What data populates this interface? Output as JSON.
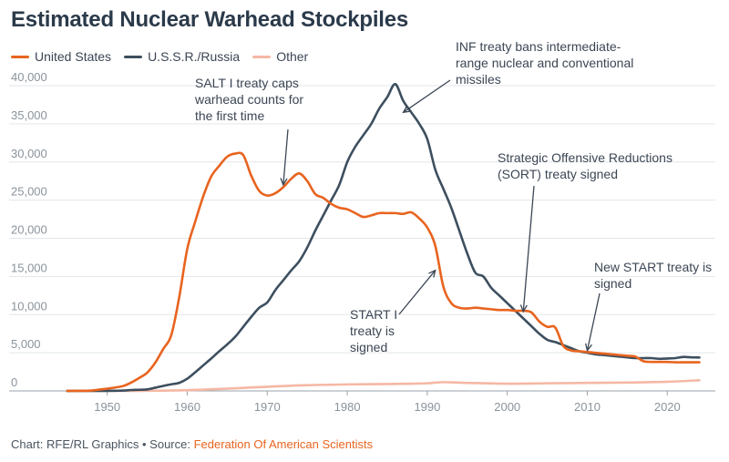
{
  "chart_data": {
    "type": "line",
    "title": "Estimated Nuclear Warhead Stockpiles",
    "xlabel": "",
    "ylabel": "",
    "xlim": [
      1944,
      2026
    ],
    "ylim": [
      0,
      40000
    ],
    "xticks": [
      "1950",
      "1960",
      "1970",
      "1980",
      "1990",
      "2000",
      "2010",
      "2020"
    ],
    "xtick_values": [
      1950,
      1960,
      1970,
      1980,
      1990,
      2000,
      2010,
      2020
    ],
    "yticks": [
      "0",
      "5,000",
      "10,000",
      "15,000",
      "20,000",
      "25,000",
      "30,000",
      "35,000",
      "40,000"
    ],
    "ytick_values": [
      0,
      5000,
      10000,
      15000,
      20000,
      25000,
      30000,
      35000,
      40000
    ],
    "grid": true,
    "legend_position": "top-left",
    "series": [
      {
        "name": "United States",
        "color": "#e8641f",
        "x": [
          1945,
          1946,
          1947,
          1948,
          1949,
          1950,
          1951,
          1952,
          1953,
          1954,
          1955,
          1956,
          1957,
          1958,
          1959,
          1960,
          1961,
          1962,
          1963,
          1964,
          1965,
          1966,
          1967,
          1968,
          1969,
          1970,
          1971,
          1972,
          1973,
          1974,
          1975,
          1976,
          1977,
          1978,
          1979,
          1980,
          1981,
          1982,
          1983,
          1984,
          1985,
          1986,
          1987,
          1988,
          1989,
          1990,
          1991,
          1992,
          1993,
          1994,
          1995,
          1996,
          1997,
          1998,
          1999,
          2000,
          2001,
          2002,
          2003,
          2004,
          2005,
          2006,
          2007,
          2008,
          2009,
          2010,
          2011,
          2012,
          2013,
          2014,
          2015,
          2016,
          2017,
          2018,
          2019,
          2020,
          2021,
          2022,
          2023,
          2024
        ],
        "y": [
          2,
          9,
          13,
          50,
          170,
          300,
          450,
          650,
          1100,
          1700,
          2400,
          3700,
          5500,
          7300,
          12300,
          18600,
          22200,
          25500,
          28100,
          29500,
          30700,
          31100,
          30900,
          28200,
          26200,
          25600,
          25900,
          26700,
          27800,
          28500,
          27500,
          25800,
          25300,
          24500,
          24000,
          23800,
          23300,
          22800,
          23000,
          23300,
          23300,
          23300,
          23200,
          23400,
          22600,
          21400,
          19000,
          13700,
          11500,
          10900,
          10800,
          10900,
          10800,
          10700,
          10600,
          10600,
          10500,
          10500,
          10300,
          9100,
          8400,
          8300,
          5900,
          5300,
          5200,
          5100,
          5000,
          4900,
          4800,
          4700,
          4600,
          4500,
          3900,
          3800,
          3800,
          3800,
          3750,
          3750,
          3750,
          3750
        ]
      },
      {
        "name": "U.S.S.R./Russia",
        "color": "#3d4f5f",
        "x": [
          1945,
          1946,
          1947,
          1948,
          1949,
          1950,
          1951,
          1952,
          1953,
          1954,
          1955,
          1956,
          1957,
          1958,
          1959,
          1960,
          1961,
          1962,
          1963,
          1964,
          1965,
          1966,
          1967,
          1968,
          1969,
          1970,
          1971,
          1972,
          1973,
          1974,
          1975,
          1976,
          1977,
          1978,
          1979,
          1980,
          1981,
          1982,
          1983,
          1984,
          1985,
          1986,
          1987,
          1988,
          1989,
          1990,
          1991,
          1992,
          1993,
          1994,
          1995,
          1996,
          1997,
          1998,
          1999,
          2000,
          2001,
          2002,
          2003,
          2004,
          2005,
          2006,
          2007,
          2008,
          2009,
          2010,
          2011,
          2012,
          2013,
          2014,
          2015,
          2016,
          2017,
          2018,
          2019,
          2020,
          2021,
          2022,
          2023,
          2024
        ],
        "y": [
          0,
          0,
          0,
          0,
          1,
          5,
          25,
          50,
          120,
          150,
          200,
          426,
          660,
          869,
          1060,
          1600,
          2450,
          3350,
          4250,
          5200,
          6100,
          7100,
          8400,
          9700,
          10900,
          11600,
          13200,
          14500,
          15800,
          17000,
          18800,
          21000,
          23000,
          25000,
          27000,
          30000,
          32000,
          33500,
          35000,
          37000,
          38500,
          40200,
          38000,
          36500,
          35000,
          33000,
          29000,
          26500,
          24000,
          21000,
          18000,
          15500,
          15000,
          13500,
          12500,
          11500,
          10500,
          9500,
          8500,
          7500,
          6700,
          6400,
          6000,
          5600,
          5200,
          5000,
          4800,
          4700,
          4600,
          4500,
          4400,
          4300,
          4300,
          4300,
          4200,
          4250,
          4300,
          4450,
          4400,
          4380
        ]
      },
      {
        "name": "Other",
        "color": "#f5b8a4",
        "x": [
          1945,
          1950,
          1953,
          1955,
          1960,
          1965,
          1970,
          1975,
          1980,
          1985,
          1988,
          1990,
          1992,
          1995,
          2000,
          2005,
          2010,
          2015,
          2020,
          2024
        ],
        "y": [
          0,
          0,
          5,
          20,
          100,
          300,
          550,
          750,
          850,
          900,
          950,
          1000,
          1150,
          1050,
          950,
          1000,
          1050,
          1100,
          1200,
          1400
        ]
      }
    ],
    "annotations": [
      {
        "id": "salt",
        "lines": [
          "SALT I treaty caps",
          "warhead counts for",
          "the first time"
        ],
        "arrow_to": [
          1972,
          27000
        ]
      },
      {
        "id": "inf",
        "lines": [
          "INF treaty bans intermediate-",
          "range nuclear and conventional",
          "missiles"
        ],
        "arrow_to": [
          1987,
          36500
        ]
      },
      {
        "id": "sort",
        "lines": [
          "Strategic Offensive Reductions",
          "(SORT) treaty signed"
        ],
        "arrow_to": [
          2002,
          10400
        ]
      },
      {
        "id": "start1",
        "lines": [
          "START I",
          "treaty is",
          "signed"
        ],
        "arrow_to": [
          1991,
          15800
        ]
      },
      {
        "id": "newstart",
        "lines": [
          "New START treaty is",
          "signed"
        ],
        "arrow_to": [
          2010,
          5300
        ]
      }
    ]
  },
  "legend": {
    "items": [
      {
        "label": "United States",
        "color": "#e8641f"
      },
      {
        "label": "U.S.S.R./Russia",
        "color": "#3d4f5f"
      },
      {
        "label": "Other",
        "color": "#f5b8a4"
      }
    ]
  },
  "footer": {
    "prefix": "Chart: RFE/RL Graphics • Source: ",
    "source": "Federation Of American Scientists"
  }
}
